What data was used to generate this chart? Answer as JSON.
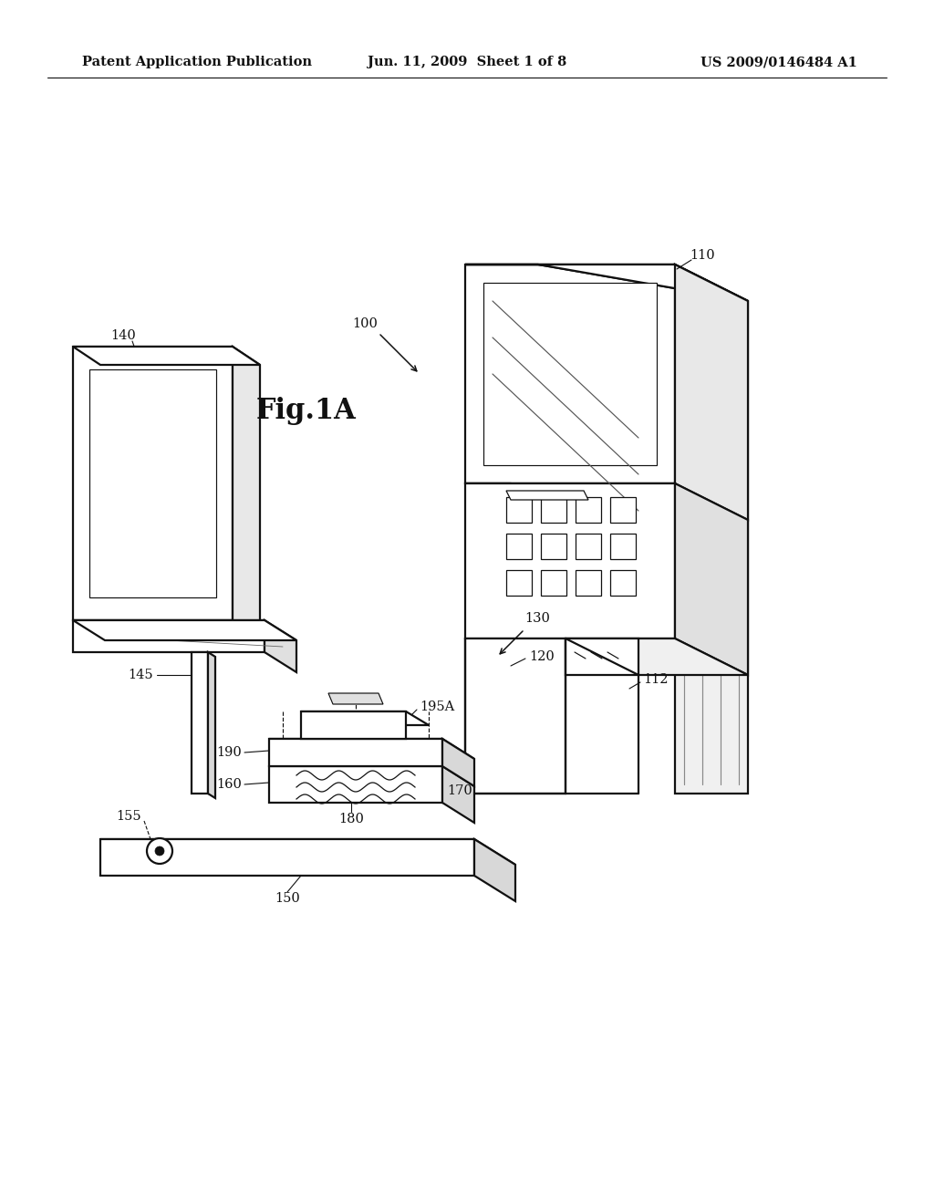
{
  "background_color": "#ffffff",
  "line_color": "#111111",
  "header_left": "Patent Application Publication",
  "header_center": "Jun. 11, 2009  Sheet 1 of 8",
  "header_right": "US 2009/0146484 A1",
  "fig_label": "Fig.1A",
  "header_fontsize": 10.5,
  "label_fontsize": 10.5,
  "fig_label_fontsize": 22,
  "lw": 1.6,
  "lw_thin": 0.85,
  "lw_hair": 0.6
}
